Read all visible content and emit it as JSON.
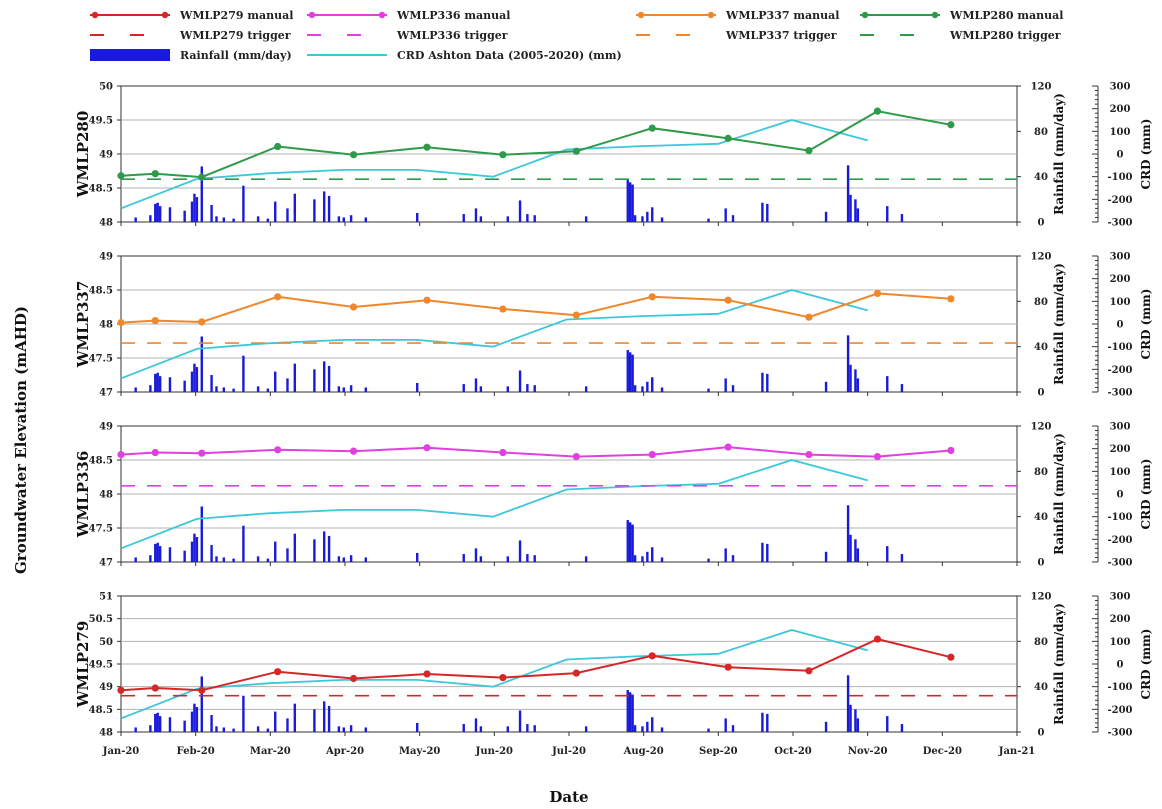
{
  "chart_data": {
    "type": "line",
    "x_axis": {
      "label": "Date",
      "ticks": [
        "Jan-20",
        "Feb-20",
        "Mar-20",
        "Apr-20",
        "May-20",
        "Jun-20",
        "Jul-20",
        "Aug-20",
        "Sep-20",
        "Oct-20",
        "Nov-20",
        "Dec-20",
        "Jan-21"
      ],
      "range": [
        "2020-01-01",
        "2021-01-01"
      ]
    },
    "shared_y_label": "Groundwater Elevation (mAHD)",
    "right_axis_label": "Rainfall (mm/day)",
    "far_right_axis_label": "CRD (mm)",
    "rain_ticks": [
      0,
      40,
      80,
      120
    ],
    "crd_ticks": [
      -300,
      -200,
      -100,
      0,
      100,
      200,
      300
    ],
    "legend": [
      {
        "label": "WMLP279 manual",
        "color": "#d62728",
        "style": "line-marker"
      },
      {
        "label": "WMLP336 manual",
        "color": "#e040e0",
        "style": "line-marker"
      },
      {
        "label": "WMLP337 manual",
        "color": "#f0872a",
        "style": "line-marker"
      },
      {
        "label": "WMLP280 manual",
        "color": "#2e9a4a",
        "style": "line-marker"
      },
      {
        "label": "WMLP279 trigger",
        "color": "#d62728",
        "style": "dash"
      },
      {
        "label": "WMLP336 trigger",
        "color": "#e040e0",
        "style": "dash"
      },
      {
        "label": "WMLP337 trigger",
        "color": "#f0872a",
        "style": "dash"
      },
      {
        "label": "WMLP280 trigger",
        "color": "#2e9a4a",
        "style": "dash"
      },
      {
        "label": "Rainfall (mm/day)",
        "color": "#1a1adb",
        "style": "bar"
      },
      {
        "label": "CRD Ashton Data (2005-2020) (mm)",
        "color": "#3cc8d8",
        "style": "line"
      }
    ],
    "crd": {
      "color": "#3cc8d8",
      "x": [
        "2020-01-01",
        "2020-02-01",
        "2020-03-01",
        "2020-04-01",
        "2020-05-01",
        "2020-06-01",
        "2020-07-01",
        "2020-08-01",
        "2020-09-01",
        "2020-10-01",
        "2020-11-01"
      ],
      "values": [
        -240,
        -110,
        -85,
        -70,
        -70,
        -100,
        20,
        35,
        45,
        150,
        60
      ]
    },
    "rainfall": {
      "color": "#1a1adb",
      "dates": [
        "2020-01-07",
        "2020-01-13",
        "2020-01-15",
        "2020-01-16",
        "2020-01-17",
        "2020-01-21",
        "2020-01-27",
        "2020-01-30",
        "2020-01-31",
        "2020-02-01",
        "2020-02-03",
        "2020-02-07",
        "2020-02-09",
        "2020-02-12",
        "2020-02-16",
        "2020-02-20",
        "2020-02-26",
        "2020-03-01",
        "2020-03-04",
        "2020-03-09",
        "2020-03-12",
        "2020-03-20",
        "2020-03-24",
        "2020-03-26",
        "2020-03-30",
        "2020-04-01",
        "2020-04-04",
        "2020-04-10",
        "2020-05-01",
        "2020-05-20",
        "2020-05-25",
        "2020-05-27",
        "2020-06-07",
        "2020-06-12",
        "2020-06-15",
        "2020-06-18",
        "2020-07-09",
        "2020-07-26",
        "2020-07-27",
        "2020-07-28",
        "2020-07-29",
        "2020-08-01",
        "2020-08-03",
        "2020-08-05",
        "2020-08-09",
        "2020-08-28",
        "2020-09-04",
        "2020-09-07",
        "2020-09-19",
        "2020-09-21",
        "2020-10-15",
        "2020-10-24",
        "2020-10-25",
        "2020-10-27",
        "2020-10-28",
        "2020-11-09",
        "2020-11-15"
      ],
      "values": [
        4,
        6,
        16,
        17,
        14,
        13,
        10,
        18,
        25,
        22,
        49,
        15,
        5,
        4,
        3,
        32,
        5,
        3,
        18,
        12,
        25,
        20,
        27,
        23,
        5,
        4,
        6,
        4,
        8,
        7,
        12,
        5,
        5,
        19,
        7,
        6,
        5,
        37,
        35,
        33,
        6,
        5,
        9,
        13,
        4,
        3,
        12,
        6,
        17,
        16,
        9,
        50,
        24,
        20,
        12,
        14,
        7
      ]
    },
    "panels": [
      {
        "name": "WMLP280",
        "color": "#2e9a4a",
        "ylim": [
          48,
          50
        ],
        "yticks": [
          "48",
          "48.5",
          "49",
          "49.5",
          "50"
        ],
        "x": [
          "2020-01-01",
          "2020-01-15",
          "2020-02-03",
          "2020-03-05",
          "2020-04-05",
          "2020-05-05",
          "2020-06-05",
          "2020-07-05",
          "2020-08-05",
          "2020-09-05",
          "2020-10-08",
          "2020-11-05",
          "2020-12-05"
        ],
        "values": [
          48.68,
          48.71,
          48.66,
          49.11,
          48.99,
          49.1,
          48.99,
          49.04,
          49.38,
          49.23,
          49.05,
          49.63,
          49.43
        ],
        "trigger": 48.63
      },
      {
        "name": "WMLP337",
        "color": "#f0872a",
        "ylim": [
          47,
          49
        ],
        "yticks": [
          "47",
          "47.5",
          "48",
          "48.5",
          "49"
        ],
        "x": [
          "2020-01-01",
          "2020-01-15",
          "2020-02-03",
          "2020-03-05",
          "2020-04-05",
          "2020-05-05",
          "2020-06-05",
          "2020-07-05",
          "2020-08-05",
          "2020-09-05",
          "2020-10-08",
          "2020-11-05",
          "2020-12-05"
        ],
        "values": [
          48.02,
          48.05,
          48.03,
          48.4,
          48.25,
          48.35,
          48.22,
          48.13,
          48.4,
          48.35,
          48.1,
          48.45,
          48.37
        ],
        "trigger": 47.72
      },
      {
        "name": "WMLP336",
        "color": "#e040e0",
        "ylim": [
          47,
          49
        ],
        "yticks": [
          "47",
          "47.5",
          "48",
          "48.5",
          "49"
        ],
        "x": [
          "2020-01-01",
          "2020-01-15",
          "2020-02-03",
          "2020-03-05",
          "2020-04-05",
          "2020-05-05",
          "2020-06-05",
          "2020-07-05",
          "2020-08-05",
          "2020-09-05",
          "2020-10-08",
          "2020-11-05",
          "2020-12-05"
        ],
        "values": [
          48.58,
          48.61,
          48.6,
          48.65,
          48.63,
          48.68,
          48.61,
          48.55,
          48.58,
          48.69,
          48.58,
          48.55,
          48.64
        ],
        "trigger": 48.12
      },
      {
        "name": "WMLP279",
        "color": "#d62728",
        "ylim": [
          48,
          51
        ],
        "yticks": [
          "48",
          "48.5",
          "49",
          "49.5",
          "50",
          "50.5",
          "51"
        ],
        "x": [
          "2020-01-01",
          "2020-01-15",
          "2020-02-03",
          "2020-03-05",
          "2020-04-05",
          "2020-05-05",
          "2020-06-05",
          "2020-07-05",
          "2020-08-05",
          "2020-09-05",
          "2020-10-08",
          "2020-11-05",
          "2020-12-05"
        ],
        "values": [
          48.92,
          48.97,
          48.92,
          49.33,
          49.18,
          49.28,
          49.2,
          49.3,
          49.68,
          49.43,
          49.35,
          50.05,
          49.65
        ],
        "trigger": 48.8
      }
    ]
  }
}
